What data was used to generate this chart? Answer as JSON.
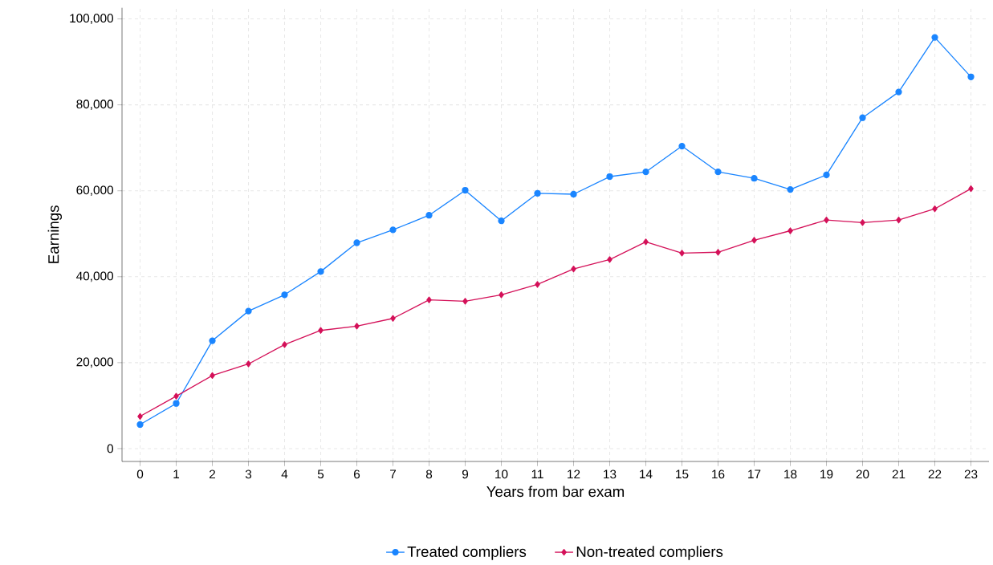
{
  "chart_data": {
    "type": "line",
    "xlabel": "Years from bar exam",
    "ylabel": "Earnings",
    "x": [
      0,
      1,
      2,
      3,
      4,
      5,
      6,
      7,
      8,
      9,
      10,
      11,
      12,
      13,
      14,
      15,
      16,
      17,
      18,
      19,
      20,
      21,
      22,
      23
    ],
    "series": [
      {
        "name": "Treated compliers",
        "color": "#1a85ff",
        "marker": "circle",
        "values": [
          5600,
          10500,
          25100,
          32000,
          35800,
          41200,
          47900,
          50900,
          54300,
          60100,
          53000,
          59400,
          59200,
          63300,
          64400,
          70400,
          64400,
          62900,
          60300,
          63700,
          77000,
          83000,
          95700,
          86500
        ]
      },
      {
        "name": "Non-treated compliers",
        "color": "#d41159",
        "marker": "diamond",
        "values": [
          7500,
          12200,
          17000,
          19700,
          24200,
          27500,
          28500,
          30300,
          34600,
          34300,
          35800,
          38200,
          41800,
          44000,
          48100,
          45500,
          45700,
          48500,
          50700,
          53200,
          52600,
          53200,
          55800,
          60500
        ]
      }
    ],
    "xlim": [
      -0.5,
      23.5
    ],
    "ylim": [
      -3000,
      102600
    ],
    "xticks": [
      0,
      1,
      2,
      3,
      4,
      5,
      6,
      7,
      8,
      9,
      10,
      11,
      12,
      13,
      14,
      15,
      16,
      17,
      18,
      19,
      20,
      21,
      22,
      23
    ],
    "yticks": [
      0,
      {
        "value": 20000,
        "label": "20,000"
      },
      {
        "value": 40000,
        "label": "40,000"
      },
      {
        "value": 60000,
        "label": "60,000"
      },
      {
        "value": 80000,
        "label": "80,000"
      },
      {
        "value": 100000,
        "label": "100,000"
      }
    ],
    "grid": true,
    "legend": "bottom",
    "line_style": "solid"
  }
}
